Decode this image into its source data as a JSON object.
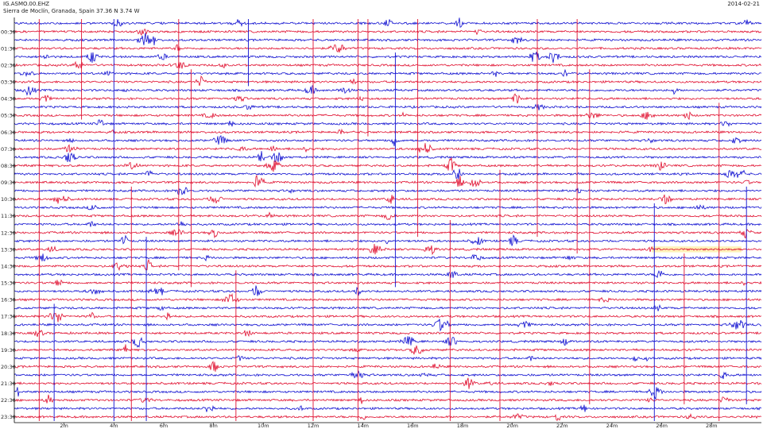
{
  "header": {
    "station": "IG.ASMO.00.EHZ",
    "location": "Sierra de Moclín, Granada, Spain  37.36 N 3.74 W",
    "date": "2014-02-21"
  },
  "chart_data": {
    "type": "line",
    "title": "",
    "xlabel": "",
    "ylabel": "",
    "x_range_minutes": [
      0,
      30
    ],
    "x_ticks": [
      "2m",
      "4m",
      "6m",
      "8m",
      "10m",
      "12m",
      "14m",
      "16m",
      "18m",
      "20m",
      "22m",
      "24m",
      "26m",
      "28m"
    ],
    "y_labels": [
      "00:30",
      "01:30",
      "02:30",
      "03:30",
      "04:30",
      "05:30",
      "06:30",
      "07:30",
      "08:30",
      "09:30",
      "10:30",
      "11:30",
      "12:30",
      "13:30",
      "14:30",
      "15:30",
      "16:30",
      "17:30",
      "18:30",
      "19:30",
      "20:30",
      "21:30",
      "22:30",
      "23:30"
    ],
    "trace_count": 48,
    "trace_minutes": 30,
    "trace_colors": [
      "#1010d0",
      "#e01030"
    ],
    "gap_highlight": {
      "trace_index": 27,
      "x_minutes": [
        25.6,
        29.2
      ],
      "color": "#fff2b8"
    }
  }
}
